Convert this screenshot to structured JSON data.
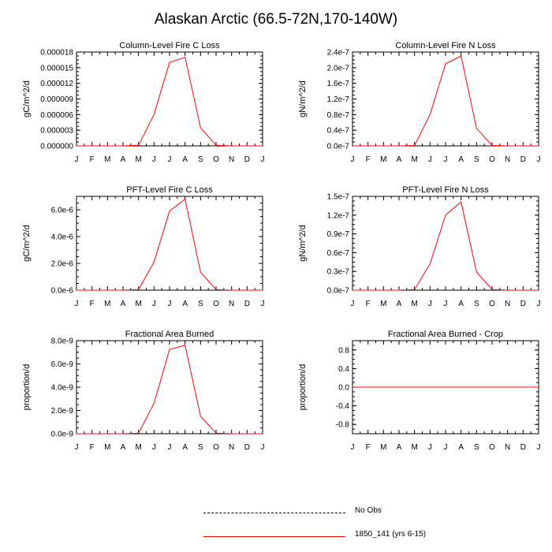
{
  "title": "Alaskan Arctic (66.5-72N,170-140W)",
  "colors": {
    "series": "#ff0000",
    "axis": "#000000",
    "obs": "#000000"
  },
  "legend": [
    {
      "label": "No Obs",
      "style": "dashed",
      "color": "#000000"
    },
    {
      "label": "1850_141 (yrs 6-15)",
      "style": "solid",
      "color": "#ff0000"
    }
  ],
  "chart_data": [
    {
      "type": "line",
      "title": "Column-Level Fire C Loss",
      "ylabel": "gC/m^2/d",
      "categories": [
        "J",
        "F",
        "M",
        "A",
        "M",
        "J",
        "J",
        "A",
        "S",
        "O",
        "N",
        "D",
        "J"
      ],
      "ylim": [
        0,
        1.8e-05
      ],
      "yticks": [
        0,
        3e-06,
        6e-06,
        9e-06,
        1.2e-05,
        1.5e-05,
        1.8e-05
      ],
      "yticklabels": [
        "0.000000",
        "0.000003",
        "0.000006",
        "0.000009",
        "0.000012",
        "0.000015",
        "0.000018"
      ],
      "series": [
        {
          "name": "1850_141 (yrs 6-15)",
          "values": [
            0,
            0,
            0,
            0,
            1e-07,
            6e-06,
            1.6e-05,
            1.7e-05,
            3.5e-06,
            1e-07,
            0,
            0,
            0
          ]
        }
      ]
    },
    {
      "type": "line",
      "title": "Column-Level Fire N Loss",
      "ylabel": "gN/m^2/d",
      "categories": [
        "J",
        "F",
        "M",
        "A",
        "M",
        "J",
        "J",
        "A",
        "S",
        "O",
        "N",
        "D",
        "J"
      ],
      "ylim": [
        0,
        2.4e-07
      ],
      "yticks": [
        0,
        4e-08,
        8e-08,
        1.2e-07,
        1.6e-07,
        2e-07,
        2.4e-07
      ],
      "yticklabels": [
        "0.0e-7",
        "0.4e-7",
        "0.8e-7",
        "1.2e-7",
        "1.6e-7",
        "2.0e-7",
        "2.4e-7"
      ],
      "series": [
        {
          "name": "1850_141 (yrs 6-15)",
          "values": [
            0,
            0,
            0,
            0,
            1e-09,
            8e-08,
            2.1e-07,
            2.3e-07,
            4.5e-08,
            1e-09,
            0,
            0,
            0
          ]
        }
      ]
    },
    {
      "type": "line",
      "title": "PFT-Level Fire C Loss",
      "ylabel": "gC/m^2/d",
      "categories": [
        "J",
        "F",
        "M",
        "A",
        "M",
        "J",
        "J",
        "A",
        "S",
        "O",
        "N",
        "D",
        "J"
      ],
      "ylim": [
        0,
        7e-06
      ],
      "yticks": [
        0,
        2e-06,
        4e-06,
        6e-06
      ],
      "yticklabels": [
        "0.0e-6",
        "2.0e-6",
        "4.0e-6",
        "6.0e-6"
      ],
      "series": [
        {
          "name": "1850_141 (yrs 6-15)",
          "values": [
            0,
            0,
            0,
            0,
            4e-08,
            2.1e-06,
            5.9e-06,
            6.8e-06,
            1.35e-06,
            4e-08,
            0,
            0,
            0
          ]
        }
      ]
    },
    {
      "type": "line",
      "title": "PFT-Level Fire N Loss",
      "ylabel": "gN/m^2/d",
      "categories": [
        "J",
        "F",
        "M",
        "A",
        "M",
        "J",
        "J",
        "A",
        "S",
        "O",
        "N",
        "D",
        "J"
      ],
      "ylim": [
        0,
        1.5e-07
      ],
      "yticks": [
        0,
        3e-08,
        6e-08,
        9e-08,
        1.2e-07,
        1.5e-07
      ],
      "yticklabels": [
        "0.0e-7",
        "0.3e-7",
        "0.6e-7",
        "0.9e-7",
        "1.2e-7",
        "1.5e-7"
      ],
      "series": [
        {
          "name": "1850_141 (yrs 6-15)",
          "values": [
            0,
            0,
            0,
            0,
            1e-09,
            4.2e-08,
            1.2e-07,
            1.41e-07,
            2.9e-08,
            1e-09,
            0,
            0,
            0
          ]
        }
      ]
    },
    {
      "type": "line",
      "title": "Fractional Area Burned",
      "ylabel": "proportion/d",
      "categories": [
        "J",
        "F",
        "M",
        "A",
        "M",
        "J",
        "J",
        "A",
        "S",
        "O",
        "N",
        "D",
        "J"
      ],
      "ylim": [
        0,
        8e-09
      ],
      "yticks": [
        0,
        2e-09,
        4e-09,
        6e-09,
        8e-09
      ],
      "yticklabels": [
        "0.0e-9",
        "2.0e-9",
        "4.0e-9",
        "6.0e-9",
        "8.0e-9"
      ],
      "series": [
        {
          "name": "1850_141 (yrs 6-15)",
          "values": [
            0,
            0,
            0,
            0,
            5e-11,
            2.6e-09,
            7.25e-09,
            7.6e-09,
            1.5e-09,
            5e-11,
            0,
            0,
            0
          ]
        }
      ]
    },
    {
      "type": "line",
      "title": "Fractional Area Burned - Crop",
      "ylabel": "proportion/d",
      "categories": [
        "J",
        "F",
        "M",
        "A",
        "M",
        "J",
        "J",
        "A",
        "S",
        "O",
        "N",
        "D",
        "J"
      ],
      "ylim": [
        -1.0,
        1.0
      ],
      "yticks": [
        -0.8,
        -0.4,
        0,
        0.4,
        0.8
      ],
      "yticklabels": [
        "-0.8",
        "-0.4",
        "0.0",
        "0.4",
        "0.8"
      ],
      "series": [
        {
          "name": "1850_141 (yrs 6-15)",
          "values": [
            0,
            0,
            0,
            0,
            0,
            0,
            0,
            0,
            0,
            0,
            0,
            0,
            0
          ]
        }
      ]
    }
  ]
}
